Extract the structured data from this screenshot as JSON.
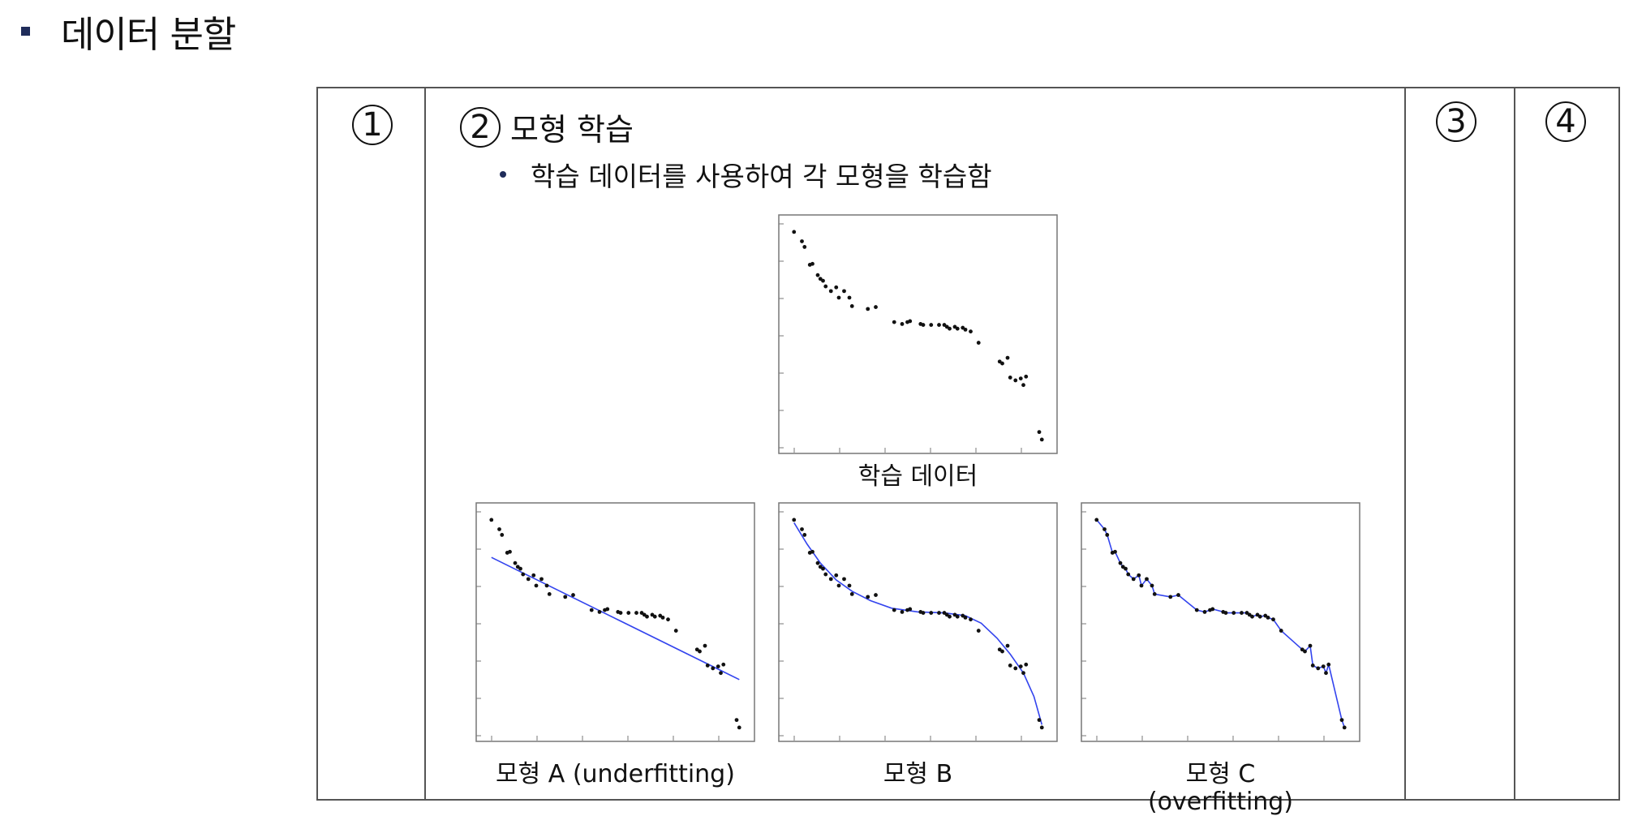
{
  "header": {
    "title": "데이터 분할"
  },
  "steps": {
    "step1": "1",
    "step2": "2",
    "step2_label": "모형 학습",
    "step3": "3",
    "step4": "4"
  },
  "bullet": "학습 데이터를 사용하여 각 모형을 학습함",
  "captions": {
    "train": "학습 데이터",
    "model_a": "모형 A (underfitting)",
    "model_b": "모형 B",
    "model_c_line1": "모형 C",
    "model_c_line2": "(overfitting)"
  },
  "colors": {
    "accent": "#1f2c5a",
    "fit_line": "#3344ee",
    "point": "#111111"
  },
  "chart_data": [
    {
      "type": "scatter",
      "title": "",
      "caption": "학습 데이터",
      "xlim": [
        0,
        1
      ],
      "ylim": [
        -1.2,
        1.2
      ],
      "points": [
        [
          0.03,
          1.08
        ],
        [
          0.06,
          0.98
        ],
        [
          0.07,
          0.92
        ],
        [
          0.09,
          0.73
        ],
        [
          0.1,
          0.74
        ],
        [
          0.12,
          0.62
        ],
        [
          0.13,
          0.58
        ],
        [
          0.14,
          0.56
        ],
        [
          0.15,
          0.5
        ],
        [
          0.17,
          0.45
        ],
        [
          0.19,
          0.49
        ],
        [
          0.2,
          0.38
        ],
        [
          0.22,
          0.45
        ],
        [
          0.24,
          0.38
        ],
        [
          0.25,
          0.29
        ],
        [
          0.31,
          0.26
        ],
        [
          0.34,
          0.28
        ],
        [
          0.41,
          0.12
        ],
        [
          0.44,
          0.1
        ],
        [
          0.46,
          0.12
        ],
        [
          0.47,
          0.13
        ],
        [
          0.51,
          0.1
        ],
        [
          0.52,
          0.09
        ],
        [
          0.55,
          0.09
        ],
        [
          0.58,
          0.09
        ],
        [
          0.6,
          0.09
        ],
        [
          0.61,
          0.07
        ],
        [
          0.62,
          0.05
        ],
        [
          0.64,
          0.07
        ],
        [
          0.65,
          0.05
        ],
        [
          0.67,
          0.06
        ],
        [
          0.68,
          0.04
        ],
        [
          0.7,
          0.02
        ],
        [
          0.73,
          -0.1
        ],
        [
          0.81,
          -0.3
        ],
        [
          0.82,
          -0.32
        ],
        [
          0.84,
          -0.26
        ],
        [
          0.85,
          -0.47
        ],
        [
          0.87,
          -0.5
        ],
        [
          0.89,
          -0.48
        ],
        [
          0.9,
          -0.55
        ],
        [
          0.91,
          -0.46
        ],
        [
          0.96,
          -1.05
        ],
        [
          0.97,
          -1.13
        ]
      ]
    },
    {
      "type": "line",
      "title": "",
      "caption": "모형 A (underfitting)",
      "fit": "linear",
      "fit_line": [
        [
          0.03,
          0.68
        ],
        [
          0.97,
          -0.62
        ]
      ]
    },
    {
      "type": "line",
      "title": "",
      "caption": "모형 B",
      "fit": "smooth",
      "fit_line": [
        [
          0.03,
          1.05
        ],
        [
          0.08,
          0.82
        ],
        [
          0.13,
          0.62
        ],
        [
          0.19,
          0.44
        ],
        [
          0.25,
          0.32
        ],
        [
          0.32,
          0.22
        ],
        [
          0.4,
          0.14
        ],
        [
          0.5,
          0.1
        ],
        [
          0.6,
          0.09
        ],
        [
          0.68,
          0.06
        ],
        [
          0.74,
          -0.02
        ],
        [
          0.8,
          -0.18
        ],
        [
          0.85,
          -0.35
        ],
        [
          0.9,
          -0.55
        ],
        [
          0.94,
          -0.8
        ],
        [
          0.97,
          -1.1
        ]
      ]
    },
    {
      "type": "line",
      "title": "",
      "caption": "모형 C (overfitting)",
      "fit": "interpolating",
      "fit_line": [
        [
          0.03,
          1.08
        ],
        [
          0.06,
          0.98
        ],
        [
          0.07,
          0.92
        ],
        [
          0.09,
          0.73
        ],
        [
          0.1,
          0.74
        ],
        [
          0.12,
          0.62
        ],
        [
          0.13,
          0.58
        ],
        [
          0.14,
          0.56
        ],
        [
          0.15,
          0.5
        ],
        [
          0.17,
          0.45
        ],
        [
          0.19,
          0.49
        ],
        [
          0.2,
          0.38
        ],
        [
          0.22,
          0.45
        ],
        [
          0.24,
          0.38
        ],
        [
          0.25,
          0.29
        ],
        [
          0.31,
          0.26
        ],
        [
          0.34,
          0.28
        ],
        [
          0.41,
          0.12
        ],
        [
          0.44,
          0.1
        ],
        [
          0.46,
          0.12
        ],
        [
          0.47,
          0.13
        ],
        [
          0.51,
          0.1
        ],
        [
          0.52,
          0.09
        ],
        [
          0.55,
          0.09
        ],
        [
          0.58,
          0.09
        ],
        [
          0.6,
          0.09
        ],
        [
          0.61,
          0.07
        ],
        [
          0.62,
          0.05
        ],
        [
          0.64,
          0.07
        ],
        [
          0.65,
          0.05
        ],
        [
          0.67,
          0.06
        ],
        [
          0.68,
          0.04
        ],
        [
          0.7,
          0.02
        ],
        [
          0.73,
          -0.1
        ],
        [
          0.81,
          -0.3
        ],
        [
          0.82,
          -0.32
        ],
        [
          0.84,
          -0.26
        ],
        [
          0.85,
          -0.47
        ],
        [
          0.87,
          -0.5
        ],
        [
          0.89,
          -0.48
        ],
        [
          0.9,
          -0.55
        ],
        [
          0.91,
          -0.46
        ],
        [
          0.96,
          -1.05
        ],
        [
          0.97,
          -1.13
        ]
      ]
    }
  ]
}
